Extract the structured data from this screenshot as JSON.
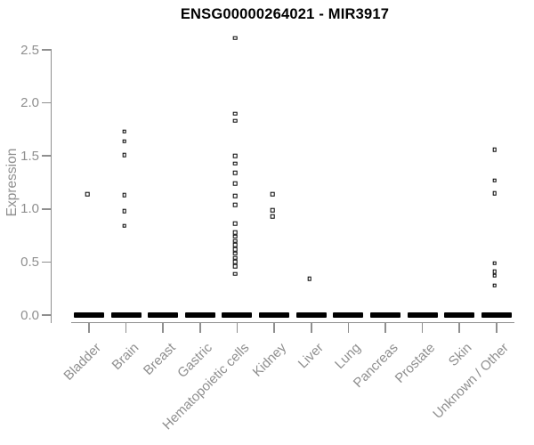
{
  "chart_data": {
    "type": "scatter",
    "title": "ENSG00000264021 - MIR3917",
    "xlabel": "",
    "ylabel": "Expression",
    "ylim": [
      0.0,
      2.5
    ],
    "yticks": [
      "0.0",
      "0.5",
      "1.0",
      "1.5",
      "2.0",
      "2.5"
    ],
    "grid": false,
    "legend": "none",
    "marker": "open-square",
    "marker_color": "#000000",
    "categories": [
      "Bladder",
      "Brain",
      "Breast",
      "Gastric",
      "Hematopoietic cells",
      "Kidney",
      "Liver",
      "Lung",
      "Pancreas",
      "Prostate",
      "Skin",
      "Unknown / Other"
    ],
    "all_categories_have_dense_zero_cluster": true,
    "series": [
      {
        "category": "Bladder",
        "values": [
          1.14
        ]
      },
      {
        "category": "Brain",
        "values": [
          1.73,
          1.64,
          1.51,
          1.13,
          0.98,
          0.84
        ]
      },
      {
        "category": "Breast",
        "values": []
      },
      {
        "category": "Gastric",
        "values": []
      },
      {
        "category": "Hematopoietic cells",
        "values": [
          2.61,
          1.9,
          1.83,
          1.5,
          1.43,
          1.34,
          1.24,
          1.12,
          1.04,
          0.86,
          0.78,
          0.74,
          0.7,
          0.66,
          0.62,
          0.58,
          0.54,
          0.5,
          0.46,
          0.39
        ]
      },
      {
        "category": "Kidney",
        "values": [
          1.14,
          0.99,
          0.93
        ]
      },
      {
        "category": "Liver",
        "values": [
          0.34
        ]
      },
      {
        "category": "Lung",
        "values": []
      },
      {
        "category": "Pancreas",
        "values": []
      },
      {
        "category": "Prostate",
        "values": []
      },
      {
        "category": "Skin",
        "values": []
      },
      {
        "category": "Unknown / Other",
        "values": [
          1.56,
          1.27,
          1.15,
          0.49,
          0.41,
          0.37,
          0.28
        ]
      }
    ],
    "colors": {
      "title": "#000000",
      "axis": "#8f8f8f",
      "tick_text": "#8f8f8f",
      "marker": "#000000"
    }
  }
}
